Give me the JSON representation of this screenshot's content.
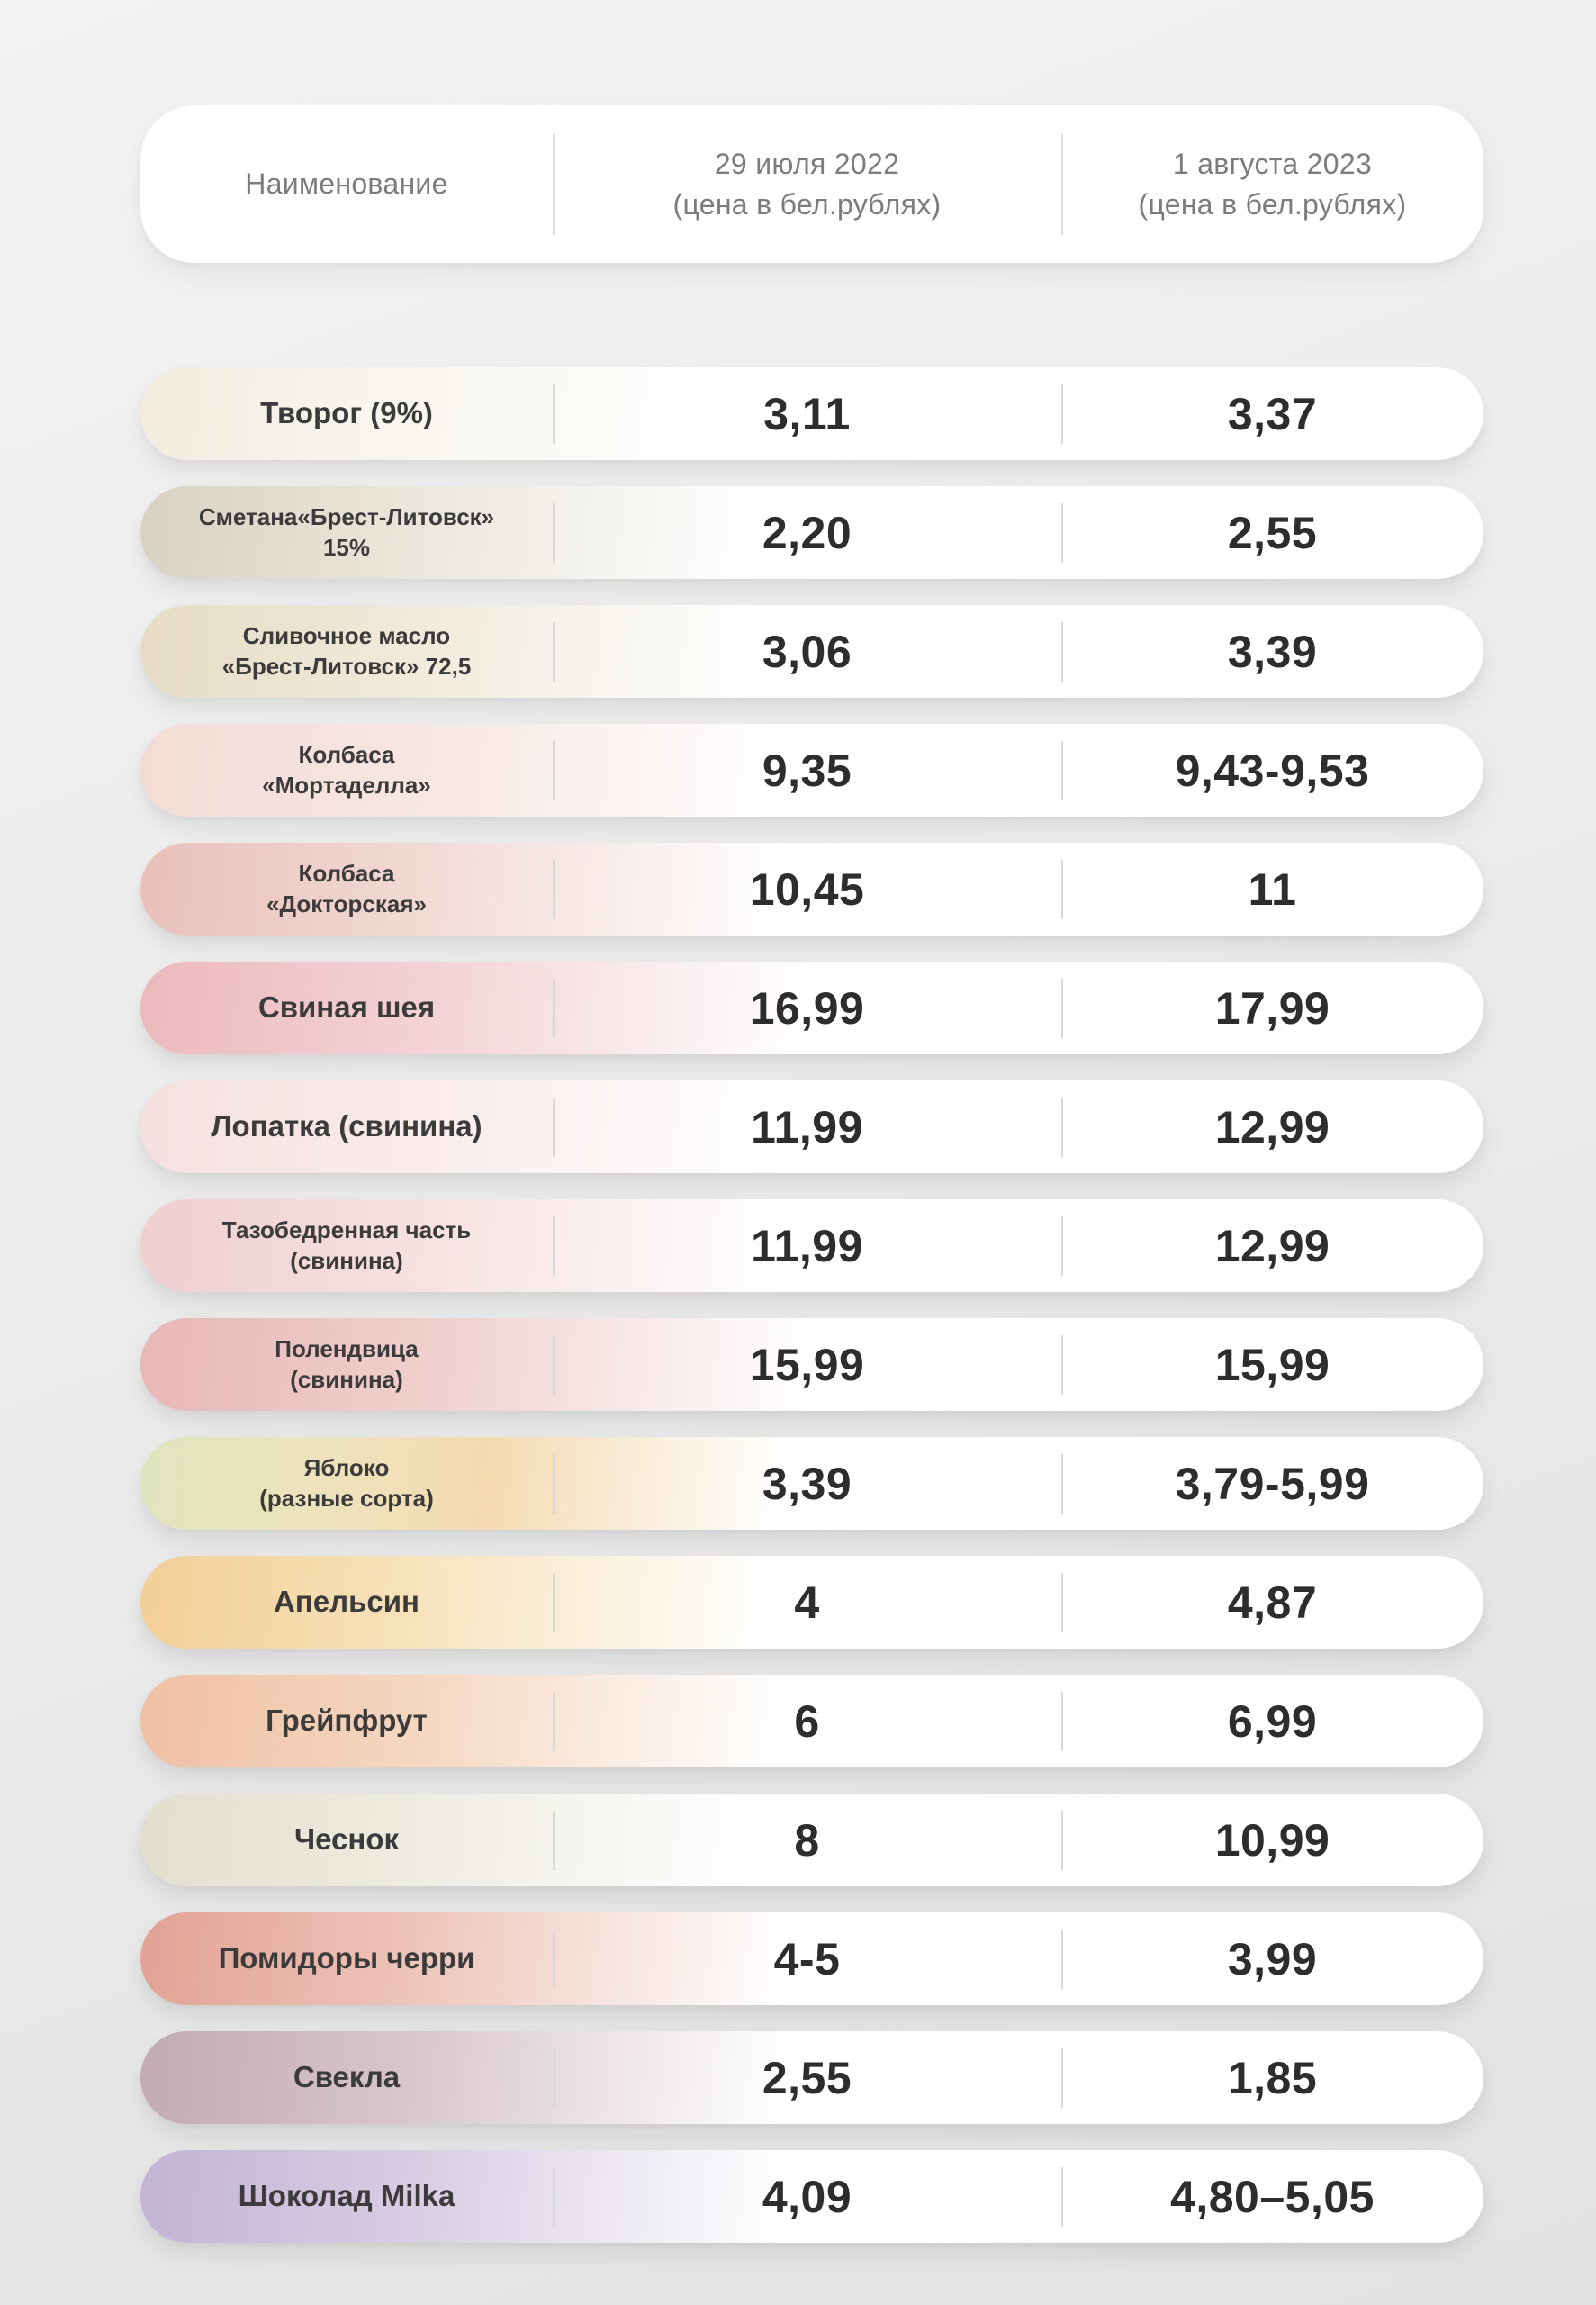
{
  "header": {
    "name_label": "Наименование",
    "col_2022": "29 июля 2022\n(цена в бел.рублях)",
    "col_2023": "1 августа 2023\n(цена в бел.рублях)"
  },
  "rows": [
    {
      "name": "Творог (9%)",
      "price_2022": "3,11",
      "price_2023": "3,37"
    },
    {
      "name": "Сметана«Брест-Литовск»\n15%",
      "price_2022": "2,20",
      "price_2023": "2,55"
    },
    {
      "name": "Сливочное масло\n«Брест-Литовск» 72,5",
      "price_2022": "3,06",
      "price_2023": "3,39"
    },
    {
      "name": "Колбаса\n«Мортаделла»",
      "price_2022": "9,35",
      "price_2023": "9,43-9,53"
    },
    {
      "name": "Колбаса\n«Докторская»",
      "price_2022": "10,45",
      "price_2023": "11"
    },
    {
      "name": "Свиная шея",
      "price_2022": "16,99",
      "price_2023": "17,99"
    },
    {
      "name": "Лопатка (свинина)",
      "price_2022": "11,99",
      "price_2023": "12,99"
    },
    {
      "name": "Тазобедренная часть\n(свинина)",
      "price_2022": "11,99",
      "price_2023": "12,99"
    },
    {
      "name": "Полендвица\n(свинина)",
      "price_2022": "15,99",
      "price_2023": "15,99"
    },
    {
      "name": "Яблоко\n(разные сорта)",
      "price_2022": "3,39",
      "price_2023": "3,79-5,99"
    },
    {
      "name": "Апельсин",
      "price_2022": "4",
      "price_2023": "4,87"
    },
    {
      "name": "Грейпфрут",
      "price_2022": "6",
      "price_2023": "6,99"
    },
    {
      "name": "Чеснок",
      "price_2022": "8",
      "price_2023": "10,99"
    },
    {
      "name": "Помидоры черри",
      "price_2022": "4-5",
      "price_2023": "3,99"
    },
    {
      "name": "Свекла",
      "price_2022": "2,55",
      "price_2023": "1,85"
    },
    {
      "name": "Шоколад Milka",
      "price_2022": "4,09",
      "price_2023": "4,80–5,05"
    }
  ],
  "palette": {
    "background": "#ececec",
    "card": "#ffffff",
    "text_dark": "#2d2d2d",
    "text_gray": "#7c7c7c",
    "divider": "#d8d8d8"
  },
  "chart_data": {
    "type": "table",
    "title": "Сравнение цен на продукты: 29 июля 2022 vs 1 августа 2023 (бел. рубли)",
    "columns": [
      "Наименование",
      "29 июля 2022 (цена в бел.рублях)",
      "1 августа 2023 (цена в бел.рублях)"
    ],
    "rows": [
      [
        "Творог (9%)",
        "3,11",
        "3,37"
      ],
      [
        "Сметана«Брест-Литовск» 15%",
        "2,20",
        "2,55"
      ],
      [
        "Сливочное масло «Брест-Литовск» 72,5",
        "3,06",
        "3,39"
      ],
      [
        "Колбаса «Мортаделла»",
        "9,35",
        "9,43-9,53"
      ],
      [
        "Колбаса «Докторская»",
        "10,45",
        "11"
      ],
      [
        "Свиная шея",
        "16,99",
        "17,99"
      ],
      [
        "Лопатка (свинина)",
        "11,99",
        "12,99"
      ],
      [
        "Тазобедренная часть (свинина)",
        "11,99",
        "12,99"
      ],
      [
        "Полендвица (свинина)",
        "15,99",
        "15,99"
      ],
      [
        "Яблоко (разные сорта)",
        "3,39",
        "3,79-5,99"
      ],
      [
        "Апельсин",
        "4",
        "4,87"
      ],
      [
        "Грейпфрут",
        "6",
        "6,99"
      ],
      [
        "Чеснок",
        "8",
        "10,99"
      ],
      [
        "Помидоры черри",
        "4-5",
        "3,99"
      ],
      [
        "Свекла",
        "2,55",
        "1,85"
      ],
      [
        "Шоколад Milka",
        "4,09",
        "4,80–5,05"
      ]
    ]
  }
}
